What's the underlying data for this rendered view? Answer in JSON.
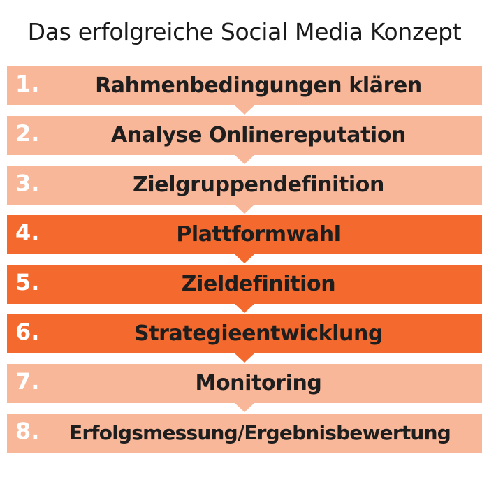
{
  "title": "Das erfolgreiche Social Media Konzept",
  "colors": {
    "light": "#f9b79a",
    "dark": "#f46a2e"
  },
  "steps": [
    {
      "number": "1.",
      "label": "Rahmenbedingungen klären",
      "style": "light"
    },
    {
      "number": "2.",
      "label": "Analyse Onlinereputation",
      "style": "light"
    },
    {
      "number": "3.",
      "label": "Zielgruppendefinition",
      "style": "light"
    },
    {
      "number": "4.",
      "label": "Plattformwahl",
      "style": "dark"
    },
    {
      "number": "5.",
      "label": "Zieldefinition",
      "style": "dark"
    },
    {
      "number": "6.",
      "label": "Strategieentwicklung",
      "style": "dark"
    },
    {
      "number": "7.",
      "label": "Monitoring",
      "style": "light"
    },
    {
      "number": "8.",
      "label": "Erfolgsmessung/Ergebnisbewertung",
      "style": "light"
    }
  ]
}
